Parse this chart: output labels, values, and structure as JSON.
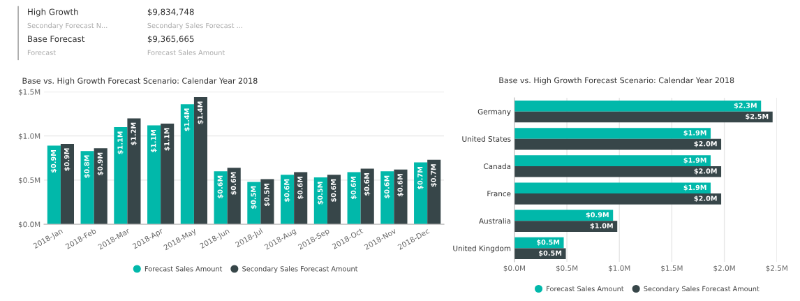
{
  "chart_data": [
    {
      "type": "other",
      "annotations": [
        "High Growth",
        "$9,834,748",
        "Secondary Forecast N...",
        "Secondary Sales Forecast ...",
        "Base Forecast",
        "$9,365,665",
        "Forecast",
        "Forecast Sales Amount"
      ]
    },
    {
      "type": "bar",
      "title": "Base vs. High Growth Forecast Scenario: Calendar Year 2018",
      "categories": [
        "2018-Jan",
        "2018-Feb",
        "2018-Mar",
        "2018-Apr",
        "2018-May",
        "2018-Jun",
        "2018-Jul",
        "2018-Aug",
        "2018-Sep",
        "2018-Oct",
        "2018-Nov",
        "2018-Dec"
      ],
      "series": [
        {
          "name": "Forecast Sales Amount",
          "color": "#01b8aa",
          "values": [
            0.89,
            0.83,
            1.1,
            1.12,
            1.36,
            0.6,
            0.48,
            0.56,
            0.53,
            0.59,
            0.6,
            0.7
          ],
          "value_labels": [
            "$0.9M",
            "$0.8M",
            "$1.1M",
            "$1.1M",
            "$1.4M",
            "$0.6M",
            "$0.5M",
            "$0.6M",
            "$0.5M",
            "$0.6M",
            "$0.6M",
            "$0.7M"
          ]
        },
        {
          "name": "Secondary Sales Forecast Amount",
          "color": "#374649",
          "values": [
            0.91,
            0.86,
            1.2,
            1.14,
            1.44,
            0.64,
            0.51,
            0.59,
            0.56,
            0.63,
            0.62,
            0.73
          ],
          "value_labels": [
            "$0.9M",
            "$0.9M",
            "$1.2M",
            "$1.1M",
            "$1.4M",
            "$0.6M",
            "$0.5M",
            "$0.6M",
            "$0.6M",
            "$0.6M",
            "$0.6M",
            "$0.7M"
          ]
        }
      ],
      "ylim": [
        0,
        1.5
      ],
      "yticks": [
        {
          "value": 0,
          "label": "$0.0M"
        },
        {
          "value": 0.5,
          "label": "$0.5M"
        },
        {
          "value": 1.0,
          "label": "$1.0M"
        },
        {
          "value": 1.5,
          "label": "$1.5M"
        }
      ],
      "grid": "y",
      "legend": "bottom"
    },
    {
      "type": "bar",
      "orientation": "horizontal",
      "title": "Base vs. High Growth Forecast Scenario: Calendar Year 2018",
      "categories": [
        "Germany",
        "United States",
        "Canada",
        "France",
        "Australia",
        "United Kingdom"
      ],
      "series": [
        {
          "name": "Forecast Sales Amount",
          "color": "#01b8aa",
          "values": [
            2.35,
            1.87,
            1.87,
            1.87,
            0.94,
            0.47
          ],
          "value_labels": [
            "$2.3M",
            "$1.9M",
            "$1.9M",
            "$1.9M",
            "$0.9M",
            "$0.5M"
          ]
        },
        {
          "name": "Secondary Sales Forecast Amount",
          "color": "#374649",
          "values": [
            2.46,
            1.97,
            1.97,
            1.97,
            0.98,
            0.49
          ],
          "value_labels": [
            "$2.5M",
            "$2.0M",
            "$2.0M",
            "$2.0M",
            "$1.0M",
            "$0.5M"
          ]
        }
      ],
      "xlim": [
        0,
        2.5
      ],
      "xticks": [
        {
          "value": 0,
          "label": "$0.0M"
        },
        {
          "value": 0.5,
          "label": "$0.5M"
        },
        {
          "value": 1.0,
          "label": "$1.0M"
        },
        {
          "value": 1.5,
          "label": "$1.5M"
        },
        {
          "value": 2.0,
          "label": "$2.0M"
        },
        {
          "value": 2.5,
          "label": "$2.5M"
        }
      ],
      "grid": "x",
      "legend": "bottom"
    }
  ]
}
